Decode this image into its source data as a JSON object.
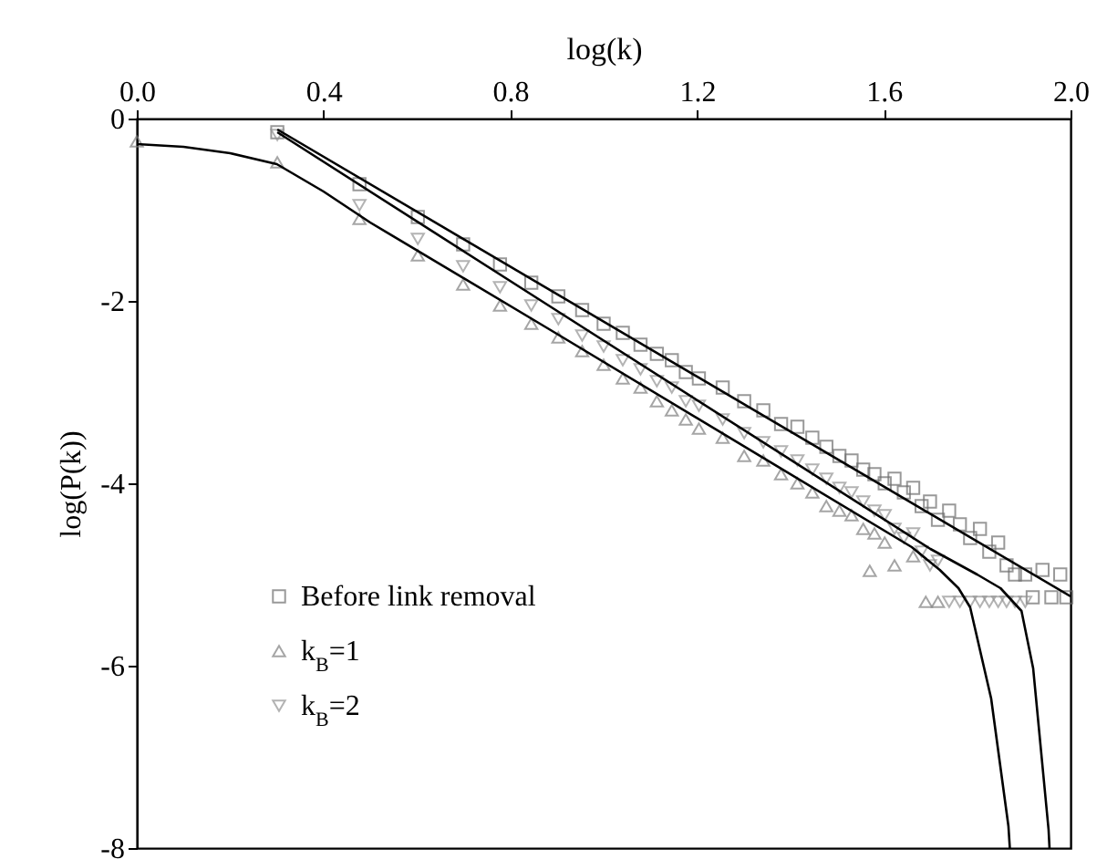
{
  "chart_data": {
    "type": "scatter",
    "xlabel": "log(k)",
    "ylabel": "log(P(k))",
    "xlim": [
      0,
      2.0
    ],
    "xticks": [
      {
        "value": 0,
        "label": "0.0"
      },
      0.4,
      0.8,
      1.2,
      1.6,
      {
        "value": 2.0,
        "label": "2.0"
      }
    ],
    "ylim": [
      -8,
      0
    ],
    "yticks": [
      -8,
      -6,
      -4,
      -2,
      0
    ],
    "grid": false,
    "legend": "bottom left",
    "series": [
      {
        "name": "Before link removal",
        "type": "scatter",
        "marker": "square",
        "color": "#6e6e6e",
        "x": [
          0.301,
          0.477,
          0.602,
          0.699,
          0.778,
          0.845,
          0.903,
          0.954,
          1.0,
          1.041,
          1.079,
          1.114,
          1.146,
          1.176,
          1.204,
          1.255,
          1.301,
          1.342,
          1.38,
          1.415,
          1.447,
          1.477,
          1.505,
          1.531,
          1.556,
          1.58,
          1.602,
          1.623,
          1.643,
          1.663,
          1.681,
          1.699,
          1.716,
          1.74,
          1.763,
          1.785,
          1.806,
          1.826,
          1.845,
          1.863,
          1.881,
          1.903,
          1.919,
          1.94,
          1.959,
          1.978,
          1.991
        ],
        "values": [
          -0.15,
          -0.72,
          -1.08,
          -1.38,
          -1.6,
          -1.8,
          -1.95,
          -2.1,
          -2.25,
          -2.35,
          -2.48,
          -2.58,
          -2.65,
          -2.78,
          -2.85,
          -2.95,
          -3.1,
          -3.2,
          -3.35,
          -3.38,
          -3.5,
          -3.6,
          -3.7,
          -3.75,
          -3.85,
          -3.9,
          -4.0,
          -3.95,
          -4.1,
          -4.05,
          -4.25,
          -4.2,
          -4.4,
          -4.3,
          -4.45,
          -4.6,
          -4.5,
          -4.75,
          -4.65,
          -4.9,
          -5.0,
          -5.0,
          -5.25,
          -4.95,
          -5.25,
          -5.0,
          -5.25
        ]
      },
      {
        "name": "k$_{B}$=1",
        "type": "scatter",
        "marker": "triangle",
        "color": "#808080",
        "x": [
          0,
          0.301,
          0.477,
          0.602,
          0.699,
          0.778,
          0.845,
          0.903,
          0.954,
          1.0,
          1.041,
          1.079,
          1.114,
          1.146,
          1.176,
          1.204,
          1.255,
          1.301,
          1.342,
          1.38,
          1.415,
          1.447,
          1.477,
          1.505,
          1.531,
          1.556,
          1.57,
          1.58,
          1.602,
          1.623,
          1.663,
          1.69,
          1.716
        ],
        "values": [
          -0.25,
          -0.48,
          -1.1,
          -1.5,
          -1.82,
          -2.05,
          -2.25,
          -2.4,
          -2.55,
          -2.7,
          -2.85,
          -2.95,
          -3.1,
          -3.2,
          -3.3,
          -3.4,
          -3.5,
          -3.7,
          -3.75,
          -3.9,
          -4.0,
          -4.1,
          -4.25,
          -4.3,
          -4.35,
          -4.5,
          -4.96,
          -4.55,
          -4.65,
          -4.9,
          -4.8,
          -5.3,
          -5.3
        ]
      },
      {
        "name": "k$_{B}$=2",
        "type": "scatter",
        "marker": "triangle-down",
        "color": "#939393",
        "x": [
          0.301,
          0.477,
          0.602,
          0.699,
          0.778,
          0.845,
          0.903,
          0.954,
          1.0,
          1.041,
          1.079,
          1.114,
          1.146,
          1.176,
          1.204,
          1.255,
          1.301,
          1.342,
          1.38,
          1.415,
          1.447,
          1.477,
          1.505,
          1.531,
          1.556,
          1.58,
          1.602,
          1.623,
          1.643,
          1.663,
          1.681,
          1.699,
          1.716,
          1.74,
          1.763,
          1.785,
          1.806,
          1.826,
          1.845,
          1.863,
          1.881,
          1.903
        ],
        "values": [
          -0.18,
          -0.95,
          -1.32,
          -1.62,
          -1.85,
          -2.05,
          -2.2,
          -2.38,
          -2.5,
          -2.65,
          -2.75,
          -2.88,
          -2.95,
          -3.1,
          -3.15,
          -3.3,
          -3.45,
          -3.55,
          -3.65,
          -3.75,
          -3.85,
          -3.95,
          -4.05,
          -4.1,
          -4.2,
          -4.3,
          -4.35,
          -4.5,
          -4.6,
          -4.55,
          -4.75,
          -4.9,
          -4.85,
          -5.3,
          -5.3,
          -5.3,
          -5.3,
          -5.3,
          -5.3,
          -5.3,
          -5.3,
          -5.3
        ]
      },
      {
        "type": "line",
        "color": "#000000",
        "x": [
          0.301,
          2.0
        ],
        "values": [
          -0.12,
          -5.24
        ]
      },
      {
        "type": "line",
        "color": "#000000",
        "x": [
          0,
          0.1,
          0.2,
          0.3,
          0.4,
          0.5,
          0.88,
          1.66,
          1.72,
          1.76,
          1.785,
          1.83,
          1.867,
          1.87
        ],
        "values": [
          -0.28,
          -0.31,
          -0.38,
          -0.5,
          -0.8,
          -1.14,
          -2.3,
          -4.7,
          -4.95,
          -5.15,
          -5.36,
          -6.36,
          -7.76,
          -8
        ]
      },
      {
        "type": "line",
        "color": "#000000",
        "x": [
          0.301,
          0.879,
          1.7,
          1.8,
          1.85,
          1.895,
          1.92,
          1.953,
          1.955
        ],
        "values": [
          -0.15,
          -2.04,
          -4.72,
          -5.0,
          -5.15,
          -5.4,
          -6.03,
          -7.8,
          -8
        ]
      }
    ]
  }
}
